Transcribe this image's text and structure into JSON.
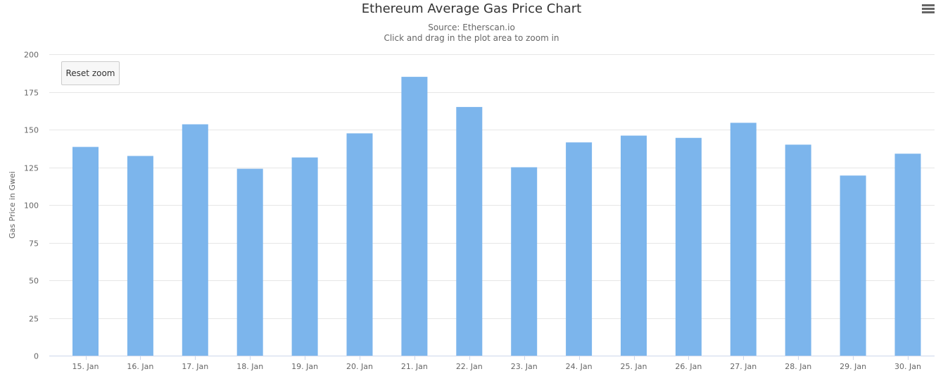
{
  "chart_data": {
    "type": "bar",
    "title": "Ethereum Average Gas Price Chart",
    "subtitle": [
      "Source: Etherscan.io",
      "Click and drag in the plot area to zoom in"
    ],
    "xlabel": "",
    "ylabel": "Gas Price in Gwei",
    "ylim": [
      0,
      200
    ],
    "yticks": [
      0,
      25,
      50,
      75,
      100,
      125,
      150,
      175,
      200
    ],
    "grid": true,
    "legend": "none",
    "bar_color": "#7cb5ec",
    "categories": [
      "15. Jan",
      "16. Jan",
      "17. Jan",
      "18. Jan",
      "19. Jan",
      "20. Jan",
      "21. Jan",
      "22. Jan",
      "23. Jan",
      "24. Jan",
      "25. Jan",
      "26. Jan",
      "27. Jan",
      "28. Jan",
      "29. Jan",
      "30. Jan"
    ],
    "values": [
      138.5,
      132.5,
      153.5,
      124,
      131.5,
      147.5,
      185,
      165,
      125,
      141.5,
      146,
      144.5,
      154.5,
      140,
      119.5,
      134
    ]
  },
  "controls": {
    "reset_zoom_label": "Reset zoom",
    "menu_icon": "hamburger-menu-icon"
  }
}
